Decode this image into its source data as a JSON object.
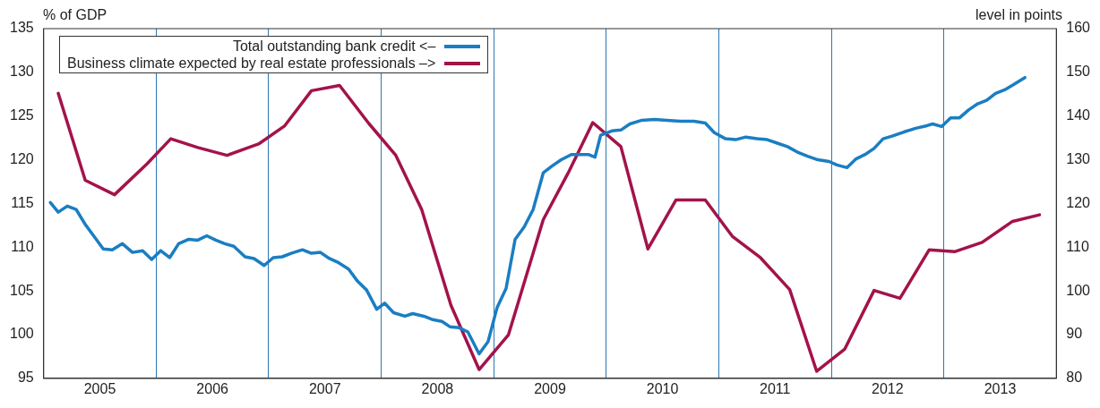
{
  "chart_data": {
    "type": "line",
    "xlabel": null,
    "ylabel": "% of GDP",
    "y2label": "level in points",
    "xlim": [
      2005,
      2014
    ],
    "xticks": [
      {
        "value": 2005.5,
        "label": "2005"
      },
      {
        "value": 2006,
        "label": null
      },
      {
        "value": 2006.5,
        "label": "2006"
      },
      {
        "value": 2007,
        "label": null
      },
      {
        "value": 2007.5,
        "label": "2007"
      },
      {
        "value": 2008,
        "label": null
      },
      {
        "value": 2008.5,
        "label": "2008"
      },
      {
        "value": 2009,
        "label": null
      },
      {
        "value": 2009.5,
        "label": "2009"
      },
      {
        "value": 2010,
        "label": null
      },
      {
        "value": 2010.5,
        "label": "2010"
      },
      {
        "value": 2011,
        "label": null
      },
      {
        "value": 2011.5,
        "label": "2011"
      },
      {
        "value": 2012,
        "label": null
      },
      {
        "value": 2012.5,
        "label": "2012"
      },
      {
        "value": 2013,
        "label": null
      },
      {
        "value": 2013.5,
        "label": "2013"
      }
    ],
    "ylim": [
      95,
      135
    ],
    "yticks": [
      95,
      100,
      105,
      110,
      115,
      120,
      125,
      130,
      135
    ],
    "y2lim": [
      80,
      160
    ],
    "y2ticks": [
      80,
      90,
      100,
      110,
      120,
      130,
      140,
      150,
      160
    ],
    "grid": "x",
    "legend": "top left",
    "marker": "none",
    "line_style": "solid",
    "series": [
      {
        "name": "Total outstanding bank credit <–",
        "color": "#1a7ec2",
        "axis": "y",
        "x": [
          2005.06,
          2005.13,
          2005.21,
          2005.29,
          2005.37,
          2005.45,
          2005.53,
          2005.61,
          2005.7,
          2005.79,
          2005.88,
          2005.96,
          2006.04,
          2006.12,
          2006.2,
          2006.29,
          2006.37,
          2006.45,
          2006.53,
          2006.61,
          2006.69,
          2006.79,
          2006.87,
          2006.96,
          2007.04,
          2007.12,
          2007.2,
          2007.3,
          2007.38,
          2007.46,
          2007.54,
          2007.61,
          2007.71,
          2007.79,
          2007.87,
          2007.96,
          2008.03,
          2008.11,
          2008.21,
          2008.28,
          2008.38,
          2008.46,
          2008.54,
          2008.61,
          2008.69,
          2008.77,
          2008.87,
          2008.95,
          2009.03,
          2009.11,
          2009.19,
          2009.27,
          2009.35,
          2009.44,
          2009.52,
          2009.6,
          2009.69,
          2009.76,
          2009.84,
          2009.9,
          2009.95,
          2010.05,
          2010.13,
          2010.21,
          2010.31,
          2010.43,
          2010.54,
          2010.66,
          2010.78,
          2010.88,
          2010.96,
          2011.06,
          2011.15,
          2011.24,
          2011.34,
          2011.43,
          2011.52,
          2011.61,
          2011.71,
          2011.79,
          2011.88,
          2011.98,
          2012.05,
          2012.14,
          2012.22,
          2012.3,
          2012.38,
          2012.46,
          2012.54,
          2012.65,
          2012.75,
          2012.85,
          2012.9,
          2012.98,
          2013.06,
          2013.14,
          2013.22,
          2013.3,
          2013.38,
          2013.46,
          2013.54,
          2013.62,
          2013.72
        ],
        "values": [
          115.1,
          114.0,
          114.7,
          114.3,
          112.6,
          111.2,
          109.8,
          109.7,
          110.4,
          109.4,
          109.6,
          108.6,
          109.6,
          108.8,
          110.4,
          110.9,
          110.8,
          111.3,
          110.8,
          110.4,
          110.1,
          108.9,
          108.7,
          107.9,
          108.8,
          108.9,
          109.3,
          109.7,
          109.3,
          109.4,
          108.7,
          108.3,
          107.5,
          106.1,
          105.1,
          102.9,
          103.6,
          102.5,
          102.1,
          102.4,
          102.1,
          101.7,
          101.5,
          100.9,
          100.8,
          100.3,
          97.8,
          99.2,
          103.1,
          105.3,
          110.9,
          112.3,
          114.3,
          118.5,
          119.3,
          120.0,
          120.6,
          120.6,
          120.6,
          120.3,
          122.8,
          123.3,
          123.4,
          124.1,
          124.5,
          124.6,
          124.5,
          124.4,
          124.4,
          124.2,
          123.1,
          122.4,
          122.3,
          122.6,
          122.4,
          122.3,
          121.9,
          121.5,
          120.8,
          120.4,
          120.0,
          119.8,
          119.4,
          119.1,
          120.1,
          120.6,
          121.3,
          122.4,
          122.7,
          123.2,
          123.6,
          123.9,
          124.1,
          123.8,
          124.8,
          124.8,
          125.7,
          126.4,
          126.8,
          127.6,
          128.0,
          128.6,
          129.4
        ]
      },
      {
        "name": "Business climate expected by real estate professionals –>",
        "color": "#a3134a",
        "axis": "y2",
        "x": [
          2005.13,
          2005.37,
          2005.63,
          2005.92,
          2006.13,
          2006.37,
          2006.63,
          2006.91,
          2007.14,
          2007.38,
          2007.63,
          2007.89,
          2008.13,
          2008.36,
          2008.62,
          2008.87,
          2009.13,
          2009.44,
          2009.66,
          2009.88,
          2010.13,
          2010.37,
          2010.62,
          2010.88,
          2011.12,
          2011.37,
          2011.63,
          2011.87,
          2012.12,
          2012.38,
          2012.61,
          2012.87,
          2013.1,
          2013.34,
          2013.61,
          2013.85
        ],
        "values": [
          145.2,
          125.3,
          122.0,
          129.1,
          134.8,
          132.8,
          131.0,
          133.6,
          137.7,
          145.8,
          147.0,
          138.3,
          131.0,
          118.6,
          96.7,
          82.0,
          89.9,
          116.3,
          126.9,
          138.5,
          133.0,
          109.6,
          120.8,
          120.8,
          112.5,
          107.6,
          100.3,
          81.6,
          86.7,
          100.1,
          98.3,
          109.4,
          109.0,
          111.1,
          115.9,
          117.4
        ]
      }
    ]
  }
}
